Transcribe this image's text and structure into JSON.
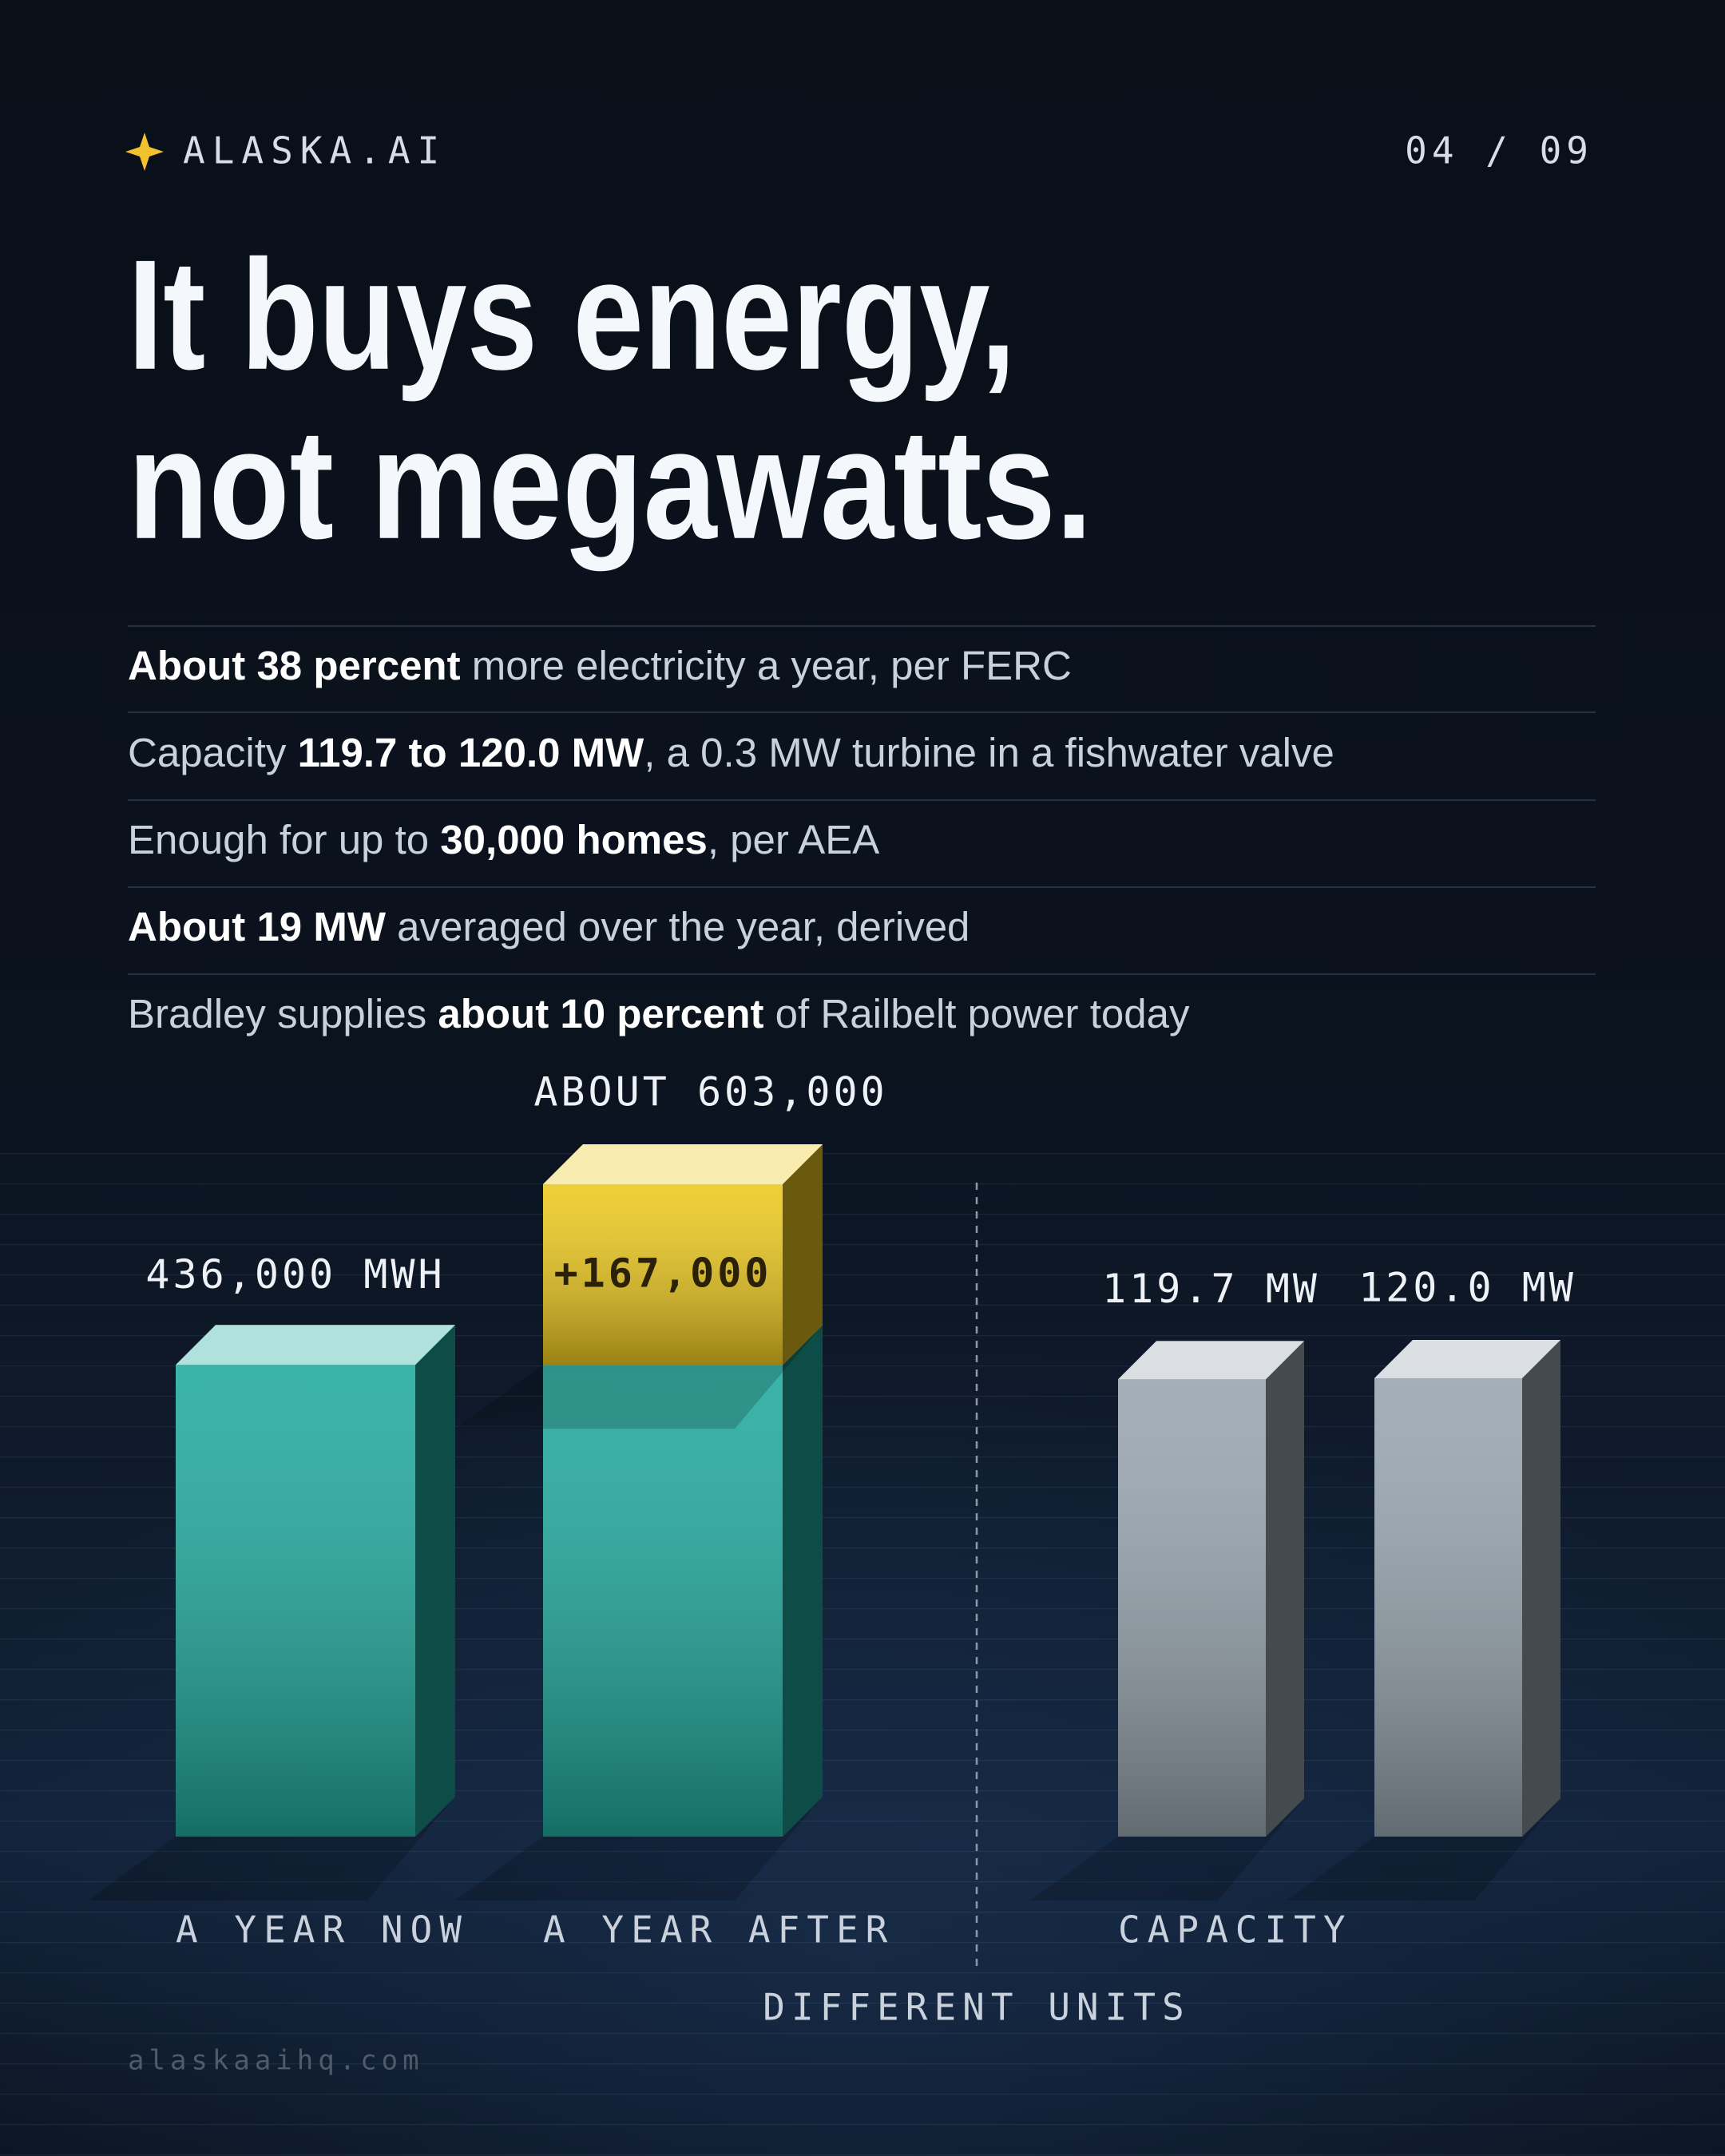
{
  "header": {
    "brand": "ALASKA.AI",
    "page": "04 / 09"
  },
  "title": [
    "It buys energy,",
    "not megawatts."
  ],
  "facts": [
    [
      {
        "text": "About 38 percent",
        "strong": true
      },
      {
        "text": " more electricity a year, per FERC"
      }
    ],
    [
      {
        "text": "Capacity "
      },
      {
        "text": "119.7 to 120.0 MW",
        "strong": true
      },
      {
        "text": ", a 0.3 MW turbine in a fishwater valve"
      }
    ],
    [
      {
        "text": "Enough for up to "
      },
      {
        "text": "30,000 homes",
        "strong": true
      },
      {
        "text": ", per AEA"
      }
    ],
    [
      {
        "text": "About 19 MW",
        "strong": true
      },
      {
        "text": " averaged over the year, derived"
      }
    ],
    [
      {
        "text": "Bradley supplies "
      },
      {
        "text": "about 10 percent",
        "strong": true
      },
      {
        "text": " of Railbelt power today"
      }
    ]
  ],
  "chart_data": [
    {
      "type": "stacked-bar",
      "categories": [
        "A YEAR NOW",
        "A YEAR AFTER"
      ],
      "series": [
        {
          "color": "#1fa99d",
          "values": [
            436000,
            436000
          ],
          "value_labels": [
            "436,000 MWH",
            null
          ]
        },
        {
          "color": "#ecc81e",
          "values": [
            null,
            167000
          ],
          "value_labels": [
            null,
            "+167,000"
          ]
        }
      ],
      "totals": [
        null,
        603000
      ],
      "total_labels": [
        null,
        "ABOUT 603,000"
      ]
    },
    {
      "type": "bar",
      "categories": [
        "CAPACITY",
        null
      ],
      "values": [
        119.7,
        120.0
      ],
      "value_labels": [
        "119.7 MW",
        "120.0 MW"
      ],
      "color": "#97a4ae"
    }
  ],
  "divider_label": "DIFFERENT UNITS",
  "footer": "alaskaaihq.com"
}
